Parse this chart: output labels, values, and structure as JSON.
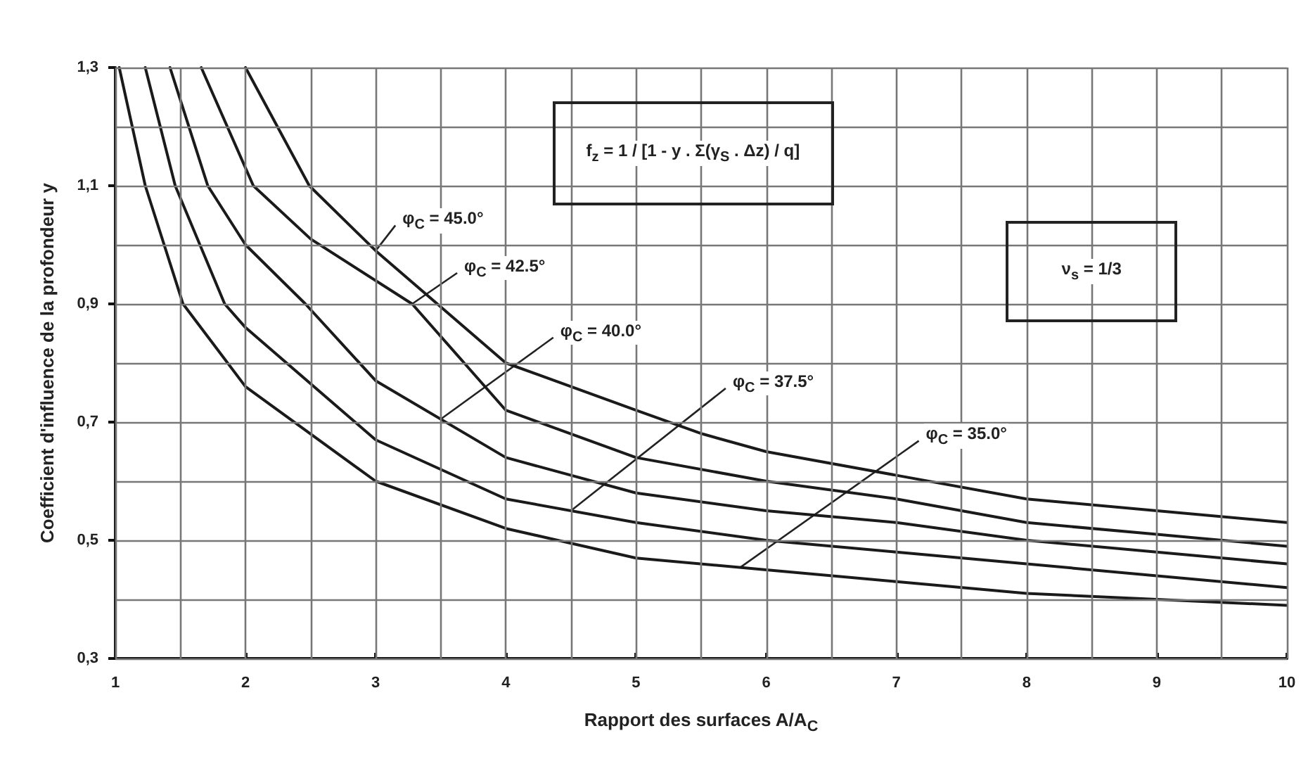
{
  "chart_data": {
    "type": "line",
    "xlabel": "Rapport des surfaces A/A$_{C}$",
    "ylabel": "Coefficient d'influence de la profondeur y",
    "xlim": [
      1,
      10
    ],
    "ylim": [
      0.3,
      1.3
    ],
    "xticks": [
      1,
      {
        "value": 1.5,
        "label": null
      },
      2,
      {
        "value": 2.5,
        "label": null
      },
      3,
      {
        "value": 3.5,
        "label": null
      },
      4,
      {
        "value": 4.5,
        "label": null
      },
      5,
      {
        "value": 5.5,
        "label": null
      },
      6,
      {
        "value": 6.5,
        "label": null
      },
      7,
      {
        "value": 7.5,
        "label": null
      },
      8,
      {
        "value": 8.5,
        "label": null
      },
      9,
      {
        "value": 9.5,
        "label": null
      },
      10
    ],
    "yticks": [
      {
        "value": 0.3,
        "label": "0,3"
      },
      {
        "value": 0.4,
        "label": null
      },
      {
        "value": 0.5,
        "label": "0,5"
      },
      {
        "value": 0.6,
        "label": null
      },
      {
        "value": 0.7,
        "label": "0,7"
      },
      {
        "value": 0.8,
        "label": null
      },
      {
        "value": 0.9,
        "label": "0,9"
      },
      {
        "value": 1.0,
        "label": null
      },
      {
        "value": 1.1,
        "label": "1,1"
      },
      {
        "value": 1.2,
        "label": null
      },
      {
        "value": 1.3,
        "label": "1,3"
      }
    ],
    "grid": true,
    "marker": "none",
    "line_style": "solid",
    "series": [
      {
        "color": "#1a1a1a",
        "x": [
          2.0,
          2.49,
          3,
          4,
          5,
          5.51,
          6,
          7,
          8,
          9,
          10
        ],
        "values": [
          1.3,
          1.1,
          0.99,
          0.8,
          0.72,
          0.68,
          0.65,
          0.61,
          0.57,
          0.55,
          0.53
        ]
      },
      {
        "color": "#1a1a1a",
        "x": [
          1.66,
          2.06,
          2.5,
          3.28,
          3.68,
          4,
          5,
          6,
          7,
          8,
          9,
          10
        ],
        "values": [
          1.3,
          1.1,
          1.01,
          0.9,
          0.8,
          0.72,
          0.64,
          0.6,
          0.57,
          0.53,
          0.51,
          0.49
        ]
      },
      {
        "color": "#1a1a1a",
        "x": [
          1.42,
          1.71,
          2,
          2.46,
          3,
          4,
          5,
          6,
          7,
          8,
          9,
          10
        ],
        "values": [
          1.3,
          1.1,
          1.0,
          0.9,
          0.77,
          0.64,
          0.58,
          0.55,
          0.53,
          0.5,
          0.48,
          0.46
        ]
      },
      {
        "color": "#1a1a1a",
        "x": [
          1.23,
          1.46,
          1.84,
          2,
          3,
          4,
          5,
          6,
          7,
          8,
          9,
          10
        ],
        "values": [
          1.3,
          1.1,
          0.9,
          0.86,
          0.67,
          0.57,
          0.53,
          0.5,
          0.48,
          0.46,
          0.44,
          0.42
        ]
      },
      {
        "color": "#1a1a1a",
        "x": [
          1.03,
          1.23,
          1.52,
          2,
          3,
          4,
          5,
          6,
          7,
          8,
          9,
          10
        ],
        "values": [
          1.3,
          1.1,
          0.9,
          0.76,
          0.6,
          0.52,
          0.47,
          0.45,
          0.43,
          0.41,
          0.4,
          0.39
        ]
      }
    ],
    "annotations": [
      {
        "text": "φ$_{C}$ = 45.0°",
        "x": 3,
        "y": 0.99
      },
      {
        "text": "φ$_{C}$ = 42.5°",
        "x": 3.28,
        "y": 0.9
      },
      {
        "text": "φ$_{C}$ = 40.0°",
        "x": 3.5,
        "y": 0.705
      },
      {
        "text": "φ$_{C}$ = 37.5°",
        "x": 4.5,
        "y": 0.55
      },
      {
        "text": "φ$_{C}$ = 35.0°",
        "x": 5.8,
        "y": 0.454
      },
      "f$_{z}$ = 1 / [1 - y . Σ(γ$_{S}$ . Δz) / q]",
      "ν$_{s}$ = 1/3"
    ]
  }
}
